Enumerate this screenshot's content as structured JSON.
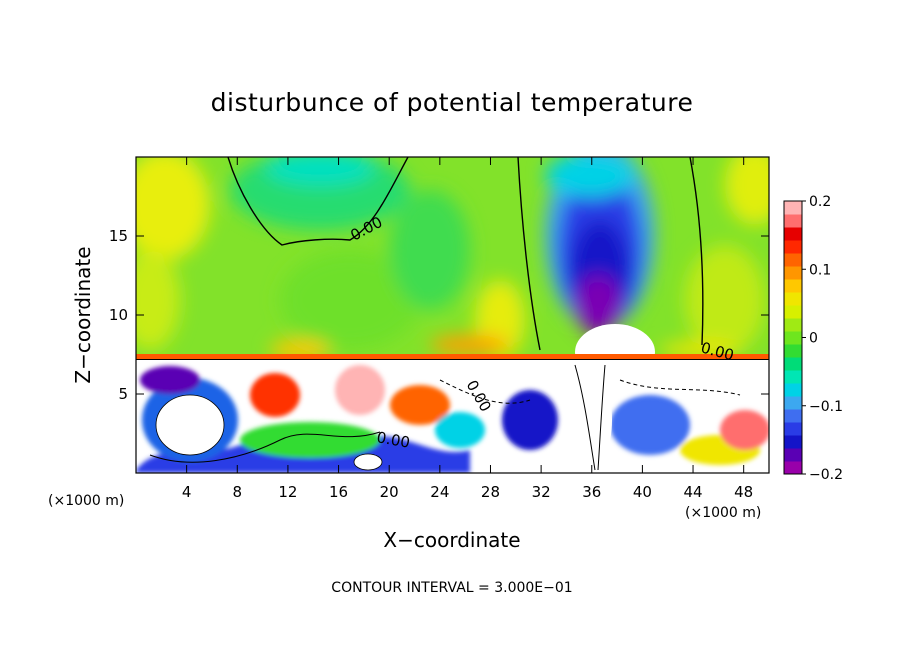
{
  "chart_data": {
    "type": "heatmap",
    "title": "disturbunce of potential temperature",
    "xlabel": "X−coordinate",
    "ylabel": "Z−coordinate",
    "x_unit": "(×1000 m)",
    "z_unit": "(×1000 m)",
    "xlim": [
      0,
      50
    ],
    "ylim": [
      0,
      20
    ],
    "x_ticks": [
      4,
      8,
      12,
      16,
      20,
      24,
      28,
      32,
      36,
      40,
      44,
      48
    ],
    "y_ticks": [
      5,
      10,
      15
    ],
    "colorbar": {
      "range": [
        -0.2,
        0.2
      ],
      "ticks": [
        0.2,
        0.1,
        0,
        -0.1,
        -0.2
      ],
      "tick_labels": [
        "0.2",
        "0.1",
        "0",
        "−0.1",
        "−0.2"
      ],
      "colors": [
        "#9900aa",
        "#5a00b4",
        "#1414c8",
        "#2a3ce6",
        "#3f6ef0",
        "#3ca8f0",
        "#00d2e6",
        "#00e6b4",
        "#00dc78",
        "#32dc32",
        "#6ee61e",
        "#a0ea14",
        "#d7f000",
        "#f0e600",
        "#ffc800",
        "#ff9600",
        "#ff6400",
        "#ff2800",
        "#e60000",
        "#ff6e6e",
        "#ffb4b4"
      ]
    },
    "contour_labels": [
      "0.00",
      "0.00",
      "0.00",
      "0.00"
    ],
    "contour_interval_text": "CONTOUR INTERVAL = 3.000E−01"
  }
}
